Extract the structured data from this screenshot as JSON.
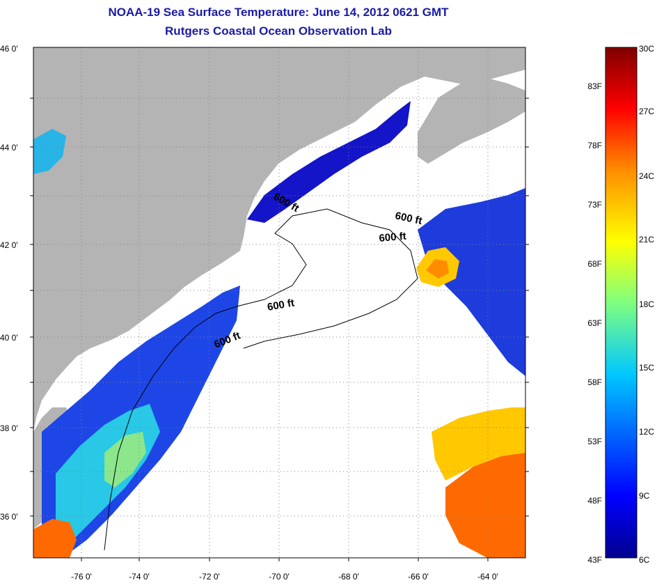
{
  "title": {
    "line1": "NOAA-19 Sea Surface Temperature:  June 14, 2012 0621 GMT",
    "line2": "Rutgers Coastal Ocean Observation Lab"
  },
  "map": {
    "lat_ticks": [
      "46 0'",
      "44 0'",
      "42 0'",
      "40 0'",
      "38 0'",
      "36 0'"
    ],
    "lon_ticks": [
      "-76 0'",
      "-74 0'",
      "-72 0'",
      "-70 0'",
      "-68 0'",
      "-66 0'",
      "-64 0'"
    ],
    "contour_labels": [
      "600 ft",
      "600 ft",
      "600 ft",
      "600 ft",
      "600 ft"
    ],
    "colors": {
      "land": "#b4b4b4",
      "cloud": "#ffffff",
      "cold": "#1414c8",
      "warm": "#ff6a00"
    }
  },
  "colorbar": {
    "fahrenheit_labels": [
      "83F",
      "78F",
      "73F",
      "68F",
      "63F",
      "58F",
      "53F",
      "48F",
      "43F"
    ],
    "celsius_labels": [
      "30C",
      "27C",
      "24C",
      "21C",
      "18C",
      "15C",
      "12C",
      "9C",
      "6C"
    ]
  }
}
